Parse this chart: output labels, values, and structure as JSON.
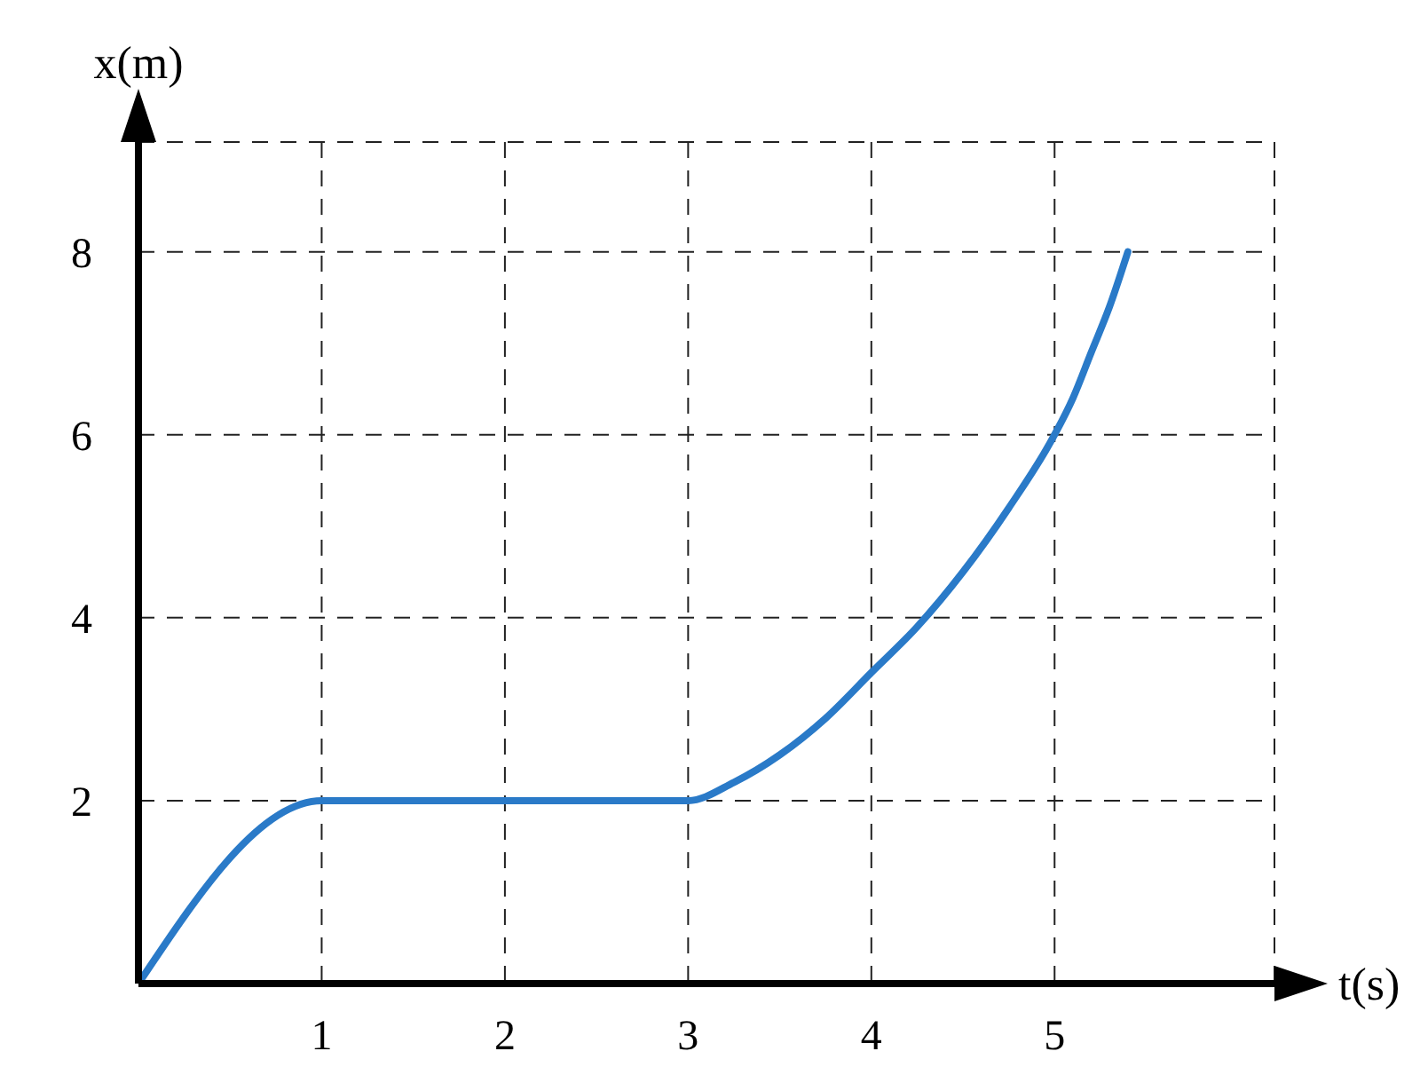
{
  "chart_data": {
    "type": "line",
    "xlabel": "t(s)",
    "ylabel": "x(m)",
    "x": [
      0,
      1,
      3,
      3.25,
      3.5,
      3.75,
      4,
      4.25,
      4.5,
      4.75,
      5,
      5.1,
      5.2,
      5.3,
      5.4
    ],
    "series": [
      {
        "color": "#2a7ac8",
        "values": [
          0,
          2,
          2,
          2.2,
          2.5,
          2.9,
          3.4,
          3.9,
          4.5,
          5.2,
          6,
          6.4,
          6.9,
          7.4,
          8
        ]
      }
    ],
    "xlim": [
      0,
      6.2
    ],
    "ylim": [
      0,
      9.2
    ],
    "xticks": [
      1,
      2,
      3,
      4,
      5
    ],
    "yticks": [
      2,
      4,
      6,
      8
    ],
    "grid": true,
    "legend": false
  }
}
